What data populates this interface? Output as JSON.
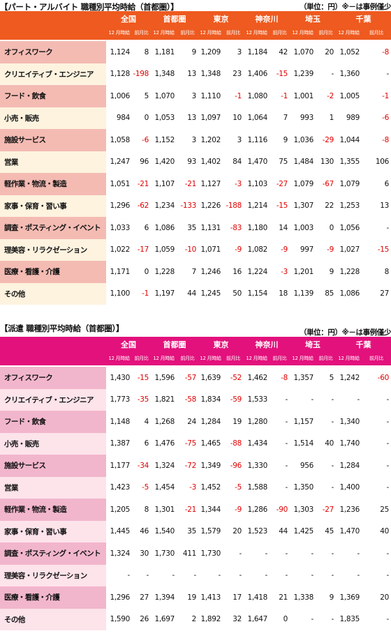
{
  "tables": [
    {
      "title": "【パート・アルバイト 職種別平均時給（首都圏）】",
      "unit_note": "（単位：円）※－は事例僅少",
      "regions": [
        "全国",
        "首都圏",
        "東京",
        "神奈川",
        "埼玉",
        "千葉"
      ],
      "sub_headers": [
        "12 月時給",
        "前月比"
      ],
      "rows": [
        {
          "category": "オフィスワーク",
          "values": [
            "1,124",
            "8",
            "1,181",
            "9",
            "1,209",
            "3",
            "1,184",
            "42",
            "1,070",
            "20",
            "1,052",
            "-8"
          ]
        },
        {
          "category": "クリエイティブ・エンジニア",
          "values": [
            "1,128",
            "-198",
            "1,348",
            "13",
            "1,348",
            "23",
            "1,406",
            "-15",
            "1,239",
            "-",
            "1,360",
            "-"
          ]
        },
        {
          "category": "フード・飲食",
          "values": [
            "1,006",
            "5",
            "1,070",
            "3",
            "1,110",
            "-1",
            "1,080",
            "-1",
            "1,001",
            "-2",
            "1,005",
            "-1"
          ]
        },
        {
          "category": "小売・販売",
          "values": [
            "984",
            "0",
            "1,053",
            "13",
            "1,097",
            "10",
            "1,064",
            "7",
            "993",
            "1",
            "989",
            "-6"
          ]
        },
        {
          "category": "施設サービス",
          "values": [
            "1,058",
            "-6",
            "1,152",
            "3",
            "1,202",
            "3",
            "1,116",
            "9",
            "1,036",
            "-29",
            "1,044",
            "-8"
          ]
        },
        {
          "category": "営業",
          "values": [
            "1,247",
            "96",
            "1,420",
            "93",
            "1,402",
            "84",
            "1,470",
            "75",
            "1,484",
            "130",
            "1,355",
            "106"
          ]
        },
        {
          "category": "軽作業・物流・製造",
          "values": [
            "1,051",
            "-21",
            "1,107",
            "-21",
            "1,127",
            "-3",
            "1,103",
            "-27",
            "1,079",
            "-67",
            "1,079",
            "6"
          ]
        },
        {
          "category": "家事・保育・習い事",
          "values": [
            "1,296",
            "-62",
            "1,234",
            "-133",
            "1,226",
            "-188",
            "1,214",
            "-15",
            "1,307",
            "22",
            "1,253",
            "13"
          ]
        },
        {
          "category": "調査・ポスティング・イベント",
          "values": [
            "1,033",
            "6",
            "1,086",
            "35",
            "1,131",
            "-83",
            "1,180",
            "14",
            "1,003",
            "0",
            "1,056",
            "-"
          ]
        },
        {
          "category": "理美容・リラクゼーション",
          "values": [
            "1,022",
            "-17",
            "1,059",
            "-10",
            "1,071",
            "-9",
            "1,082",
            "-9",
            "997",
            "-9",
            "1,027",
            "-15"
          ]
        },
        {
          "category": "医療・看護・介護",
          "values": [
            "1,171",
            "0",
            "1,228",
            "7",
            "1,246",
            "16",
            "1,224",
            "-3",
            "1,201",
            "9",
            "1,228",
            "8"
          ]
        },
        {
          "category": "その他",
          "values": [
            "1,100",
            "-1",
            "1,197",
            "44",
            "1,245",
            "50",
            "1,154",
            "18",
            "1,139",
            "85",
            "1,086",
            "27"
          ]
        }
      ]
    },
    {
      "title": "【派遣 職種別平均時給（首都圏）】",
      "unit_note": "（単位：円）※－は事例僅少",
      "regions": [
        "全国",
        "首都圏",
        "東京",
        "神奈川",
        "埼玉",
        "千葉"
      ],
      "sub_headers": [
        "12 月時給",
        "前月比"
      ],
      "rows": [
        {
          "category": "オフィスワーク",
          "values": [
            "1,430",
            "-15",
            "1,596",
            "-57",
            "1,639",
            "-52",
            "1,462",
            "-8",
            "1,357",
            "5",
            "1,242",
            "-60"
          ]
        },
        {
          "category": "クリエイティブ・エンジニア",
          "values": [
            "1,773",
            "-35",
            "1,821",
            "-58",
            "1,834",
            "-59",
            "1,533",
            "-",
            "-",
            "-",
            "-",
            "-"
          ]
        },
        {
          "category": "フード・飲食",
          "values": [
            "1,148",
            "4",
            "1,268",
            "24",
            "1,284",
            "19",
            "1,280",
            "-",
            "1,157",
            "-",
            "1,340",
            "-"
          ]
        },
        {
          "category": "小売・販売",
          "values": [
            "1,387",
            "6",
            "1,476",
            "-75",
            "1,465",
            "-88",
            "1,434",
            "-",
            "1,514",
            "40",
            "1,740",
            "-"
          ]
        },
        {
          "category": "施設サービス",
          "values": [
            "1,177",
            "-34",
            "1,324",
            "-72",
            "1,349",
            "-96",
            "1,330",
            "-",
            "956",
            "-",
            "1,284",
            "-"
          ]
        },
        {
          "category": "営業",
          "values": [
            "1,423",
            "-5",
            "1,454",
            "-3",
            "1,452",
            "-5",
            "1,588",
            "-",
            "1,350",
            "-",
            "1,400",
            "-"
          ]
        },
        {
          "category": "軽作業・物流・製造",
          "values": [
            "1,205",
            "8",
            "1,301",
            "-21",
            "1,344",
            "-9",
            "1,286",
            "-90",
            "1,303",
            "-27",
            "1,236",
            "25"
          ]
        },
        {
          "category": "家事・保育・習い事",
          "values": [
            "1,445",
            "46",
            "1,540",
            "35",
            "1,579",
            "20",
            "1,523",
            "44",
            "1,425",
            "45",
            "1,470",
            "40"
          ]
        },
        {
          "category": "調査・ポスティング・イベント",
          "values": [
            "1,324",
            "30",
            "1,730",
            "411",
            "1,730",
            "-",
            "-",
            "-",
            "-",
            "-",
            "-",
            "-"
          ]
        },
        {
          "category": "理美容・リラクゼーション",
          "values": [
            "-",
            "-",
            "-",
            "-",
            "-",
            "-",
            "-",
            "-",
            "-",
            "-",
            "-",
            "-"
          ]
        },
        {
          "category": "医療・看護・介護",
          "values": [
            "1,296",
            "27",
            "1,394",
            "19",
            "1,413",
            "17",
            "1,418",
            "21",
            "1,338",
            "9",
            "1,369",
            "20"
          ]
        },
        {
          "category": "その他",
          "values": [
            "1,590",
            "26",
            "1,697",
            "2",
            "1,892",
            "32",
            "1,647",
            "0",
            "-",
            "-",
            "1,835",
            "-"
          ]
        }
      ]
    }
  ]
}
